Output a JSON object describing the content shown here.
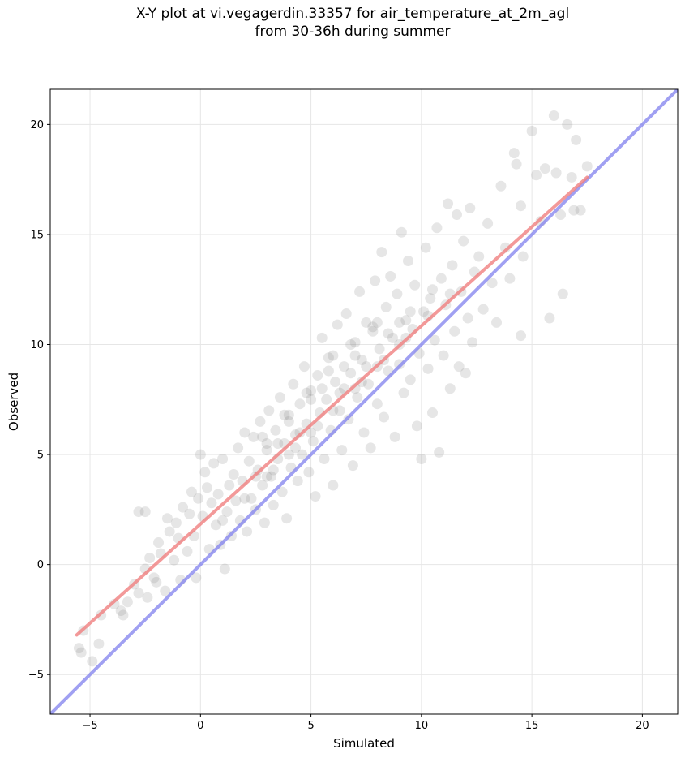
{
  "title_line1": "X-Y plot at vi.vegagerdin.33357 for air_temperature_at_2m_agl",
  "title_line2": "from 30-36h during summer",
  "chart_data": {
    "type": "scatter",
    "title": "X-Y plot at vi.vegagerdin.33357 for air_temperature_at_2m_agl from 30-36h during summer",
    "xlabel": "Simulated",
    "ylabel": "Observed",
    "xlim": [
      -6.8,
      21.6
    ],
    "ylim": [
      -6.8,
      21.6
    ],
    "xticks": [
      -5,
      0,
      5,
      10,
      15,
      20
    ],
    "yticks": [
      -5,
      0,
      5,
      10,
      15,
      20
    ],
    "xtick_labels": [
      "−5",
      "0",
      "5",
      "10",
      "15",
      "20"
    ],
    "ytick_labels": [
      "−5",
      "0",
      "5",
      "10",
      "15",
      "20"
    ],
    "grid": true,
    "point_color": "#808080",
    "point_opacity": 0.2,
    "points": [
      [
        -5.5,
        -3.8
      ],
      [
        -5.4,
        -4.0
      ],
      [
        -5.3,
        -3.0
      ],
      [
        -4.9,
        -4.4
      ],
      [
        -4.6,
        -3.6
      ],
      [
        -4.5,
        -2.3
      ],
      [
        -3.9,
        -1.8
      ],
      [
        -3.6,
        -2.1
      ],
      [
        -3.5,
        -2.3
      ],
      [
        -3.3,
        -1.7
      ],
      [
        -3.0,
        -0.9
      ],
      [
        -2.8,
        -1.3
      ],
      [
        -2.8,
        2.4
      ],
      [
        -2.5,
        2.4
      ],
      [
        -2.5,
        -0.2
      ],
      [
        -2.4,
        -1.5
      ],
      [
        -2.3,
        0.3
      ],
      [
        -2.1,
        -0.6
      ],
      [
        -2.0,
        -0.8
      ],
      [
        -1.9,
        1.0
      ],
      [
        -1.8,
        0.5
      ],
      [
        -1.6,
        -1.2
      ],
      [
        -1.5,
        2.1
      ],
      [
        -1.4,
        1.5
      ],
      [
        -1.2,
        0.2
      ],
      [
        -1.1,
        1.9
      ],
      [
        -1.0,
        1.2
      ],
      [
        -0.9,
        -0.7
      ],
      [
        -0.8,
        2.6
      ],
      [
        -0.6,
        0.6
      ],
      [
        -0.5,
        2.3
      ],
      [
        -0.4,
        3.3
      ],
      [
        -0.3,
        1.3
      ],
      [
        -0.2,
        -0.6
      ],
      [
        -0.1,
        3.0
      ],
      [
        0.0,
        5.0
      ],
      [
        0.1,
        2.2
      ],
      [
        0.2,
        4.2
      ],
      [
        0.3,
        3.5
      ],
      [
        0.4,
        0.7
      ],
      [
        0.5,
        2.8
      ],
      [
        0.6,
        4.6
      ],
      [
        0.7,
        1.8
      ],
      [
        0.8,
        3.2
      ],
      [
        0.9,
        0.9
      ],
      [
        1.0,
        4.8
      ],
      [
        1.1,
        -0.2
      ],
      [
        1.2,
        2.4
      ],
      [
        1.3,
        3.6
      ],
      [
        1.4,
        1.3
      ],
      [
        1.5,
        4.1
      ],
      [
        1.6,
        2.9
      ],
      [
        1.7,
        5.3
      ],
      [
        1.8,
        2.0
      ],
      [
        1.9,
        3.8
      ],
      [
        2.0,
        6.0
      ],
      [
        2.1,
        1.5
      ],
      [
        2.2,
        4.7
      ],
      [
        2.3,
        3.0
      ],
      [
        2.4,
        5.8
      ],
      [
        2.5,
        2.5
      ],
      [
        2.6,
        4.3
      ],
      [
        2.7,
        6.5
      ],
      [
        2.8,
        3.6
      ],
      [
        2.9,
        1.9
      ],
      [
        3.0,
        5.2
      ],
      [
        3.1,
        7.0
      ],
      [
        3.2,
        4.0
      ],
      [
        3.3,
        2.7
      ],
      [
        3.4,
        6.1
      ],
      [
        3.5,
        4.8
      ],
      [
        3.6,
        7.6
      ],
      [
        3.7,
        3.3
      ],
      [
        3.8,
        5.5
      ],
      [
        3.9,
        2.1
      ],
      [
        4.0,
        6.8
      ],
      [
        4.1,
        4.4
      ],
      [
        4.2,
        8.2
      ],
      [
        4.3,
        5.9
      ],
      [
        4.4,
        3.8
      ],
      [
        4.5,
        7.3
      ],
      [
        4.6,
        5.0
      ],
      [
        4.7,
        9.0
      ],
      [
        4.8,
        6.4
      ],
      [
        4.9,
        4.2
      ],
      [
        5.0,
        7.9
      ],
      [
        5.1,
        5.6
      ],
      [
        5.2,
        3.1
      ],
      [
        5.3,
        8.6
      ],
      [
        5.4,
        6.9
      ],
      [
        5.5,
        10.3
      ],
      [
        5.6,
        4.8
      ],
      [
        5.7,
        7.5
      ],
      [
        5.8,
        9.4
      ],
      [
        5.9,
        6.1
      ],
      [
        6.0,
        3.6
      ],
      [
        6.1,
        8.3
      ],
      [
        6.2,
        10.9
      ],
      [
        6.3,
        7.0
      ],
      [
        6.4,
        5.2
      ],
      [
        6.5,
        9.0
      ],
      [
        6.6,
        11.4
      ],
      [
        6.7,
        6.6
      ],
      [
        6.8,
        8.7
      ],
      [
        6.9,
        4.5
      ],
      [
        7.0,
        10.1
      ],
      [
        7.1,
        7.6
      ],
      [
        7.2,
        12.4
      ],
      [
        7.3,
        9.3
      ],
      [
        7.4,
        6.0
      ],
      [
        7.5,
        11.0
      ],
      [
        7.6,
        8.2
      ],
      [
        7.7,
        5.3
      ],
      [
        7.8,
        10.6
      ],
      [
        7.9,
        12.9
      ],
      [
        8.0,
        7.3
      ],
      [
        8.1,
        9.8
      ],
      [
        8.2,
        14.2
      ],
      [
        8.3,
        6.7
      ],
      [
        8.4,
        11.7
      ],
      [
        8.5,
        8.8
      ],
      [
        8.6,
        13.1
      ],
      [
        8.7,
        10.3
      ],
      [
        8.8,
        5.8
      ],
      [
        8.9,
        12.3
      ],
      [
        9.0,
        9.1
      ],
      [
        9.1,
        15.1
      ],
      [
        9.2,
        7.8
      ],
      [
        9.3,
        11.1
      ],
      [
        9.4,
        13.8
      ],
      [
        9.5,
        8.4
      ],
      [
        9.6,
        10.7
      ],
      [
        9.7,
        12.7
      ],
      [
        9.8,
        6.3
      ],
      [
        9.9,
        9.6
      ],
      [
        10.0,
        4.8
      ],
      [
        10.1,
        11.5
      ],
      [
        10.2,
        14.4
      ],
      [
        10.3,
        8.9
      ],
      [
        10.4,
        12.1
      ],
      [
        10.5,
        6.9
      ],
      [
        10.6,
        10.2
      ],
      [
        10.7,
        15.3
      ],
      [
        10.8,
        5.1
      ],
      [
        10.9,
        13.0
      ],
      [
        11.0,
        9.5
      ],
      [
        11.1,
        11.8
      ],
      [
        11.2,
        16.4
      ],
      [
        11.3,
        8.0
      ],
      [
        11.4,
        13.6
      ],
      [
        11.5,
        10.6
      ],
      [
        11.6,
        15.9
      ],
      [
        11.7,
        9.0
      ],
      [
        11.8,
        12.4
      ],
      [
        11.9,
        14.7
      ],
      [
        12.0,
        8.7
      ],
      [
        12.1,
        11.2
      ],
      [
        12.2,
        16.2
      ],
      [
        12.3,
        10.1
      ],
      [
        12.4,
        13.3
      ],
      [
        12.6,
        14.0
      ],
      [
        12.8,
        11.6
      ],
      [
        13.0,
        15.5
      ],
      [
        13.2,
        12.8
      ],
      [
        13.4,
        11.0
      ],
      [
        13.6,
        17.2
      ],
      [
        13.8,
        14.4
      ],
      [
        14.0,
        13.0
      ],
      [
        14.2,
        18.7
      ],
      [
        14.3,
        18.2
      ],
      [
        14.5,
        16.3
      ],
      [
        14.5,
        10.4
      ],
      [
        14.6,
        14.0
      ],
      [
        15.0,
        19.7
      ],
      [
        15.2,
        17.7
      ],
      [
        15.4,
        15.6
      ],
      [
        15.6,
        18.0
      ],
      [
        15.8,
        11.2
      ],
      [
        16.0,
        20.4
      ],
      [
        16.1,
        17.8
      ],
      [
        16.3,
        15.9
      ],
      [
        16.4,
        12.3
      ],
      [
        16.6,
        20.0
      ],
      [
        16.8,
        17.6
      ],
      [
        16.9,
        16.1
      ],
      [
        17.2,
        16.1
      ],
      [
        17.5,
        18.1
      ],
      [
        17.0,
        19.3
      ],
      [
        4.0,
        5.0
      ],
      [
        5.0,
        6.0
      ],
      [
        6.0,
        7.0
      ],
      [
        7.0,
        8.0
      ],
      [
        8.0,
        9.0
      ],
      [
        9.0,
        10.0
      ],
      [
        3.0,
        4.0
      ],
      [
        2.0,
        3.0
      ],
      [
        1.0,
        2.0
      ],
      [
        5.5,
        8.0
      ],
      [
        6.5,
        8.0
      ],
      [
        7.5,
        9.0
      ],
      [
        4.5,
        6.0
      ],
      [
        3.5,
        5.5
      ],
      [
        2.5,
        4.0
      ],
      [
        8.5,
        10.5
      ],
      [
        9.5,
        11.5
      ],
      [
        10.5,
        12.5
      ],
      [
        6.0,
        9.5
      ],
      [
        7.0,
        9.5
      ],
      [
        5.0,
        7.5
      ],
      [
        4.0,
        6.5
      ],
      [
        3.0,
        5.5
      ],
      [
        8.0,
        11.0
      ],
      [
        9.0,
        11.0
      ],
      [
        6.8,
        10.0
      ],
      [
        7.8,
        10.8
      ],
      [
        5.8,
        8.8
      ],
      [
        4.8,
        7.8
      ],
      [
        3.8,
        6.8
      ],
      [
        2.8,
        5.8
      ],
      [
        6.3,
        7.8
      ],
      [
        7.3,
        8.3
      ],
      [
        8.3,
        9.3
      ],
      [
        5.3,
        6.3
      ],
      [
        4.3,
        5.3
      ],
      [
        3.3,
        4.3
      ],
      [
        9.3,
        10.3
      ],
      [
        10.3,
        11.3
      ],
      [
        11.3,
        12.3
      ]
    ],
    "fit_line": {
      "x": [
        -5.6,
        17.5
      ],
      "y": [
        -3.2,
        17.6
      ],
      "color": "#f08080"
    },
    "identity_line": {
      "x": [
        -6.8,
        21.6
      ],
      "y": [
        -6.8,
        21.6
      ],
      "color": "#8080ee"
    }
  }
}
